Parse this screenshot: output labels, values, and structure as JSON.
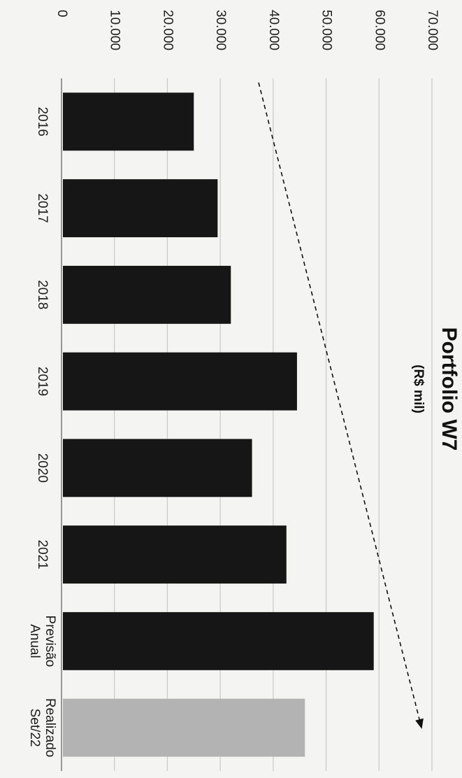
{
  "chart_data": {
    "type": "bar",
    "title": "Portfolio W7",
    "subtitle": "(R$ mil)",
    "categories": [
      "2016",
      "2017",
      "2018",
      "2019",
      "2020",
      "2021",
      "Previsão Anual",
      "Realizado Set/22"
    ],
    "category_lines": [
      [
        "2016"
      ],
      [
        "2017"
      ],
      [
        "2018"
      ],
      [
        "2019"
      ],
      [
        "2020"
      ],
      [
        "2021"
      ],
      [
        "Previsão",
        "Anual"
      ],
      [
        "Realizado",
        "Set/22"
      ]
    ],
    "values": [
      25000,
      29500,
      32000,
      44500,
      36000,
      42500,
      59000,
      46000
    ],
    "yticks": [
      "0",
      "10.000",
      "20.000",
      "30.000",
      "40.000",
      "50.000",
      "60.000",
      "70.000"
    ],
    "ylim": [
      0,
      70000
    ],
    "xlabel": "",
    "ylabel": "",
    "grid": true,
    "legend": "none",
    "trend_arrow": "dashed, rising from 2016 to Realizado Set/22",
    "colors": {
      "bar": "#161616",
      "bar_highlight": "#b3b3b3",
      "grid": "#c9c9c6",
      "axis": "#7a7a7a",
      "text": "#1c1c1c",
      "background": "#f4f4f2"
    }
  }
}
